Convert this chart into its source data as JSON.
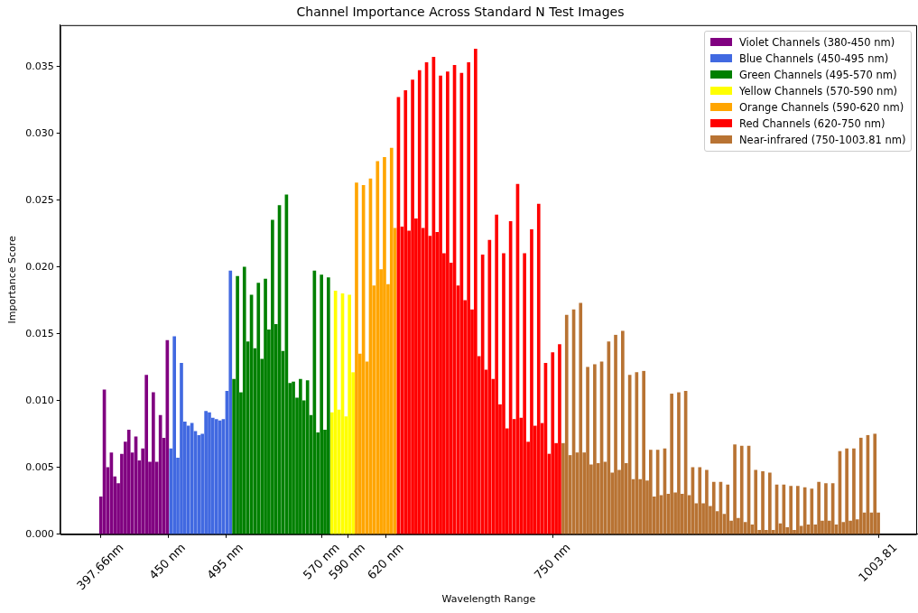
{
  "chart_data": {
    "type": "bar",
    "title": "Channel Importance Across Standard N Test Images",
    "xlabel": "Wavelength Range",
    "ylabel": "Importance Score",
    "xlim": [
      366,
      1034
    ],
    "xticks": [
      {
        "value": 397.66,
        "label": "397.66nm"
      },
      {
        "value": 450,
        "label": "450 nm"
      },
      {
        "value": 495,
        "label": "495 nm"
      },
      {
        "value": 570,
        "label": "570 nm"
      },
      {
        "value": 590,
        "label": "590 nm"
      },
      {
        "value": 620,
        "label": "620 nm"
      },
      {
        "value": 750,
        "label": "750 nm"
      },
      {
        "value": 1003.81,
        "label": "1003.81"
      }
    ],
    "ylim": [
      0,
      0.0381
    ],
    "yticks": [
      {
        "value": 0,
        "label": "0.000"
      },
      {
        "value": 0.005,
        "label": "0.005"
      },
      {
        "value": 0.01,
        "label": "0.010"
      },
      {
        "value": 0.015,
        "label": "0.015"
      },
      {
        "value": 0.02,
        "label": "0.020"
      },
      {
        "value": 0.025,
        "label": "0.025"
      },
      {
        "value": 0.03,
        "label": "0.030"
      },
      {
        "value": 0.035,
        "label": "0.035"
      }
    ],
    "grid": false,
    "legend": "top right",
    "series": [
      {
        "name": "Violet Channels (380-450 nm)",
        "color": "#800080",
        "x": [
          397.7,
          400.4,
          403.1,
          405.9,
          408.6,
          411.3,
          414.0,
          416.8,
          419.5,
          422.2,
          425.0,
          427.7,
          430.4,
          433.2,
          435.9,
          438.6,
          441.3,
          444.1,
          446.8,
          449.5
        ],
        "values": [
          0.0028,
          0.0108,
          0.005,
          0.0061,
          0.0043,
          0.0038,
          0.006,
          0.0069,
          0.0078,
          0.0061,
          0.0073,
          0.0055,
          0.0064,
          0.0119,
          0.0054,
          0.0106,
          0.0054,
          0.0089,
          0.0072,
          0.0145
        ]
      },
      {
        "name": "Blue Channels (450-495 nm)",
        "color": "#4169e1",
        "x": [
          452.3,
          455.0,
          457.7,
          460.5,
          463.2,
          465.9,
          468.7,
          471.4,
          474.1,
          476.8,
          479.6,
          482.3,
          485.0,
          487.8,
          490.5,
          493.2,
          496.0,
          498.7
        ],
        "values": [
          0.0064,
          0.0148,
          0.0057,
          0.0128,
          0.0084,
          0.0081,
          0.0083,
          0.0077,
          0.0074,
          0.0075,
          0.0092,
          0.0091,
          0.0087,
          0.0086,
          0.0085,
          0.0086,
          0.0107,
          0.0197
        ]
      },
      {
        "name": "Green Channels (495-570 nm)",
        "color": "#008000",
        "x": [
          501.4,
          504.2,
          506.9,
          509.6,
          512.3,
          515.1,
          517.8,
          520.5,
          523.3,
          526.0,
          528.7,
          531.5,
          534.2,
          536.9,
          539.6,
          542.4,
          545.1,
          547.8,
          550.6,
          553.3,
          556.0,
          558.8,
          561.5,
          564.2,
          566.9,
          569.7,
          572.4,
          575.1
        ],
        "values": [
          0.0116,
          0.0193,
          0.0106,
          0.02,
          0.0144,
          0.0179,
          0.0139,
          0.0188,
          0.0131,
          0.0191,
          0.0153,
          0.0235,
          0.0157,
          0.0246,
          0.0137,
          0.0254,
          0.0113,
          0.0114,
          0.0102,
          0.0116,
          0.01,
          0.0115,
          0.0089,
          0.0197,
          0.0076,
          0.0194,
          0.0078,
          0.0192
        ]
      },
      {
        "name": "Yellow Channels (570-590 nm)",
        "color": "#ffff00",
        "x": [
          577.9,
          580.6,
          583.3,
          586.1,
          588.8,
          591.5,
          594.3
        ],
        "values": [
          0.0091,
          0.0182,
          0.0093,
          0.018,
          0.0088,
          0.0179,
          0.0121
        ]
      },
      {
        "name": "Orange Channels (590-620 nm)",
        "color": "#ffa500",
        "x": [
          597.0,
          599.7,
          602.4,
          605.2,
          607.9,
          610.6,
          613.4,
          616.1,
          618.8,
          621.6,
          624.3,
          627.0
        ],
        "values": [
          0.0263,
          0.0135,
          0.0261,
          0.0129,
          0.0266,
          0.0186,
          0.0279,
          0.0198,
          0.0282,
          0.0187,
          0.0289,
          0.0229
        ]
      },
      {
        "name": "Red Channels (620-750 nm)",
        "color": "#ff0000",
        "x": [
          629.7,
          632.5,
          635.2,
          637.9,
          640.7,
          643.4,
          646.1,
          648.9,
          651.6,
          654.3,
          657.1,
          659.8,
          662.5,
          665.2,
          668.0,
          670.7,
          673.4,
          676.2,
          678.9,
          681.6,
          684.4,
          687.1,
          689.8,
          692.5,
          695.3,
          698.0,
          700.7,
          703.5,
          706.2,
          708.9,
          711.7,
          714.4,
          717.1,
          719.9,
          722.6,
          725.3,
          728.0,
          730.8,
          733.5,
          736.2,
          739.0,
          741.7,
          744.4,
          747.2,
          749.9,
          752.6,
          755.3
        ],
        "values": [
          0.0327,
          0.023,
          0.0332,
          0.0227,
          0.034,
          0.0236,
          0.0347,
          0.0229,
          0.0353,
          0.0223,
          0.0357,
          0.0226,
          0.0343,
          0.021,
          0.0346,
          0.0203,
          0.0351,
          0.0186,
          0.0345,
          0.0175,
          0.0353,
          0.0168,
          0.0363,
          0.0133,
          0.0209,
          0.0123,
          0.022,
          0.0116,
          0.0239,
          0.0097,
          0.021,
          0.0079,
          0.0234,
          0.0086,
          0.0262,
          0.0087,
          0.021,
          0.0069,
          0.0228,
          0.0081,
          0.0247,
          0.0083,
          0.0128,
          0.006,
          0.0136,
          0.0068,
          0.0142
        ]
      },
      {
        "name": "Near-infrared (750-1003.81 nm)",
        "color": "#b87333",
        "x": [
          758.1,
          760.8,
          763.5,
          766.3,
          769.0,
          771.7,
          774.5,
          777.2,
          779.9,
          782.7,
          785.4,
          788.1,
          790.8,
          793.6,
          796.3,
          799.0,
          801.8,
          804.5,
          807.2,
          810.0,
          812.7,
          815.4,
          818.1,
          820.9,
          823.6,
          826.3,
          829.1,
          831.8,
          834.5,
          837.3,
          840.0,
          842.7,
          845.5,
          848.2,
          850.9,
          853.6,
          856.4,
          859.1,
          861.8,
          864.6,
          867.3,
          870.0,
          872.8,
          875.5,
          878.2,
          880.9,
          883.7,
          886.4,
          889.1,
          891.9,
          894.6,
          897.3,
          900.1,
          902.8,
          905.5,
          908.2,
          911.0,
          913.7,
          916.4,
          919.2,
          921.9,
          924.6,
          927.4,
          930.1,
          932.8,
          935.6,
          938.3,
          941.0,
          943.7,
          946.5,
          949.2,
          951.9,
          954.7,
          957.4,
          960.1,
          962.9,
          965.6,
          968.3,
          971.0,
          973.8,
          976.5,
          979.2,
          982.0,
          984.7,
          987.4,
          990.2,
          992.9,
          995.6,
          998.4,
          1001.1,
          1003.8
        ],
        "values": [
          0.0068,
          0.0164,
          0.0059,
          0.0168,
          0.0061,
          0.0173,
          0.0061,
          0.0125,
          0.0052,
          0.0127,
          0.0053,
          0.0129,
          0.0054,
          0.0144,
          0.0046,
          0.0149,
          0.0048,
          0.0152,
          0.0053,
          0.0119,
          0.0041,
          0.0121,
          0.0041,
          0.0122,
          0.004,
          0.0063,
          0.0028,
          0.0063,
          0.0029,
          0.0064,
          0.003,
          0.0105,
          0.0031,
          0.0106,
          0.003,
          0.0107,
          0.0029,
          0.005,
          0.0023,
          0.005,
          0.0023,
          0.0048,
          0.0021,
          0.0039,
          0.0017,
          0.0039,
          0.0015,
          0.0037,
          0.001,
          0.0067,
          0.0012,
          0.0066,
          0.0009,
          0.0066,
          0.0007,
          0.0048,
          0.0003,
          0.0047,
          0.0003,
          0.0046,
          0.0003,
          0.0037,
          0.0008,
          0.0037,
          0.0005,
          0.0036,
          0.0003,
          0.0036,
          0.0006,
          0.0035,
          0.0007,
          0.0034,
          0.0007,
          0.0039,
          0.001,
          0.0038,
          0.001,
          0.0038,
          0.0007,
          0.0062,
          0.0009,
          0.0064,
          0.001,
          0.0064,
          0.0011,
          0.0072,
          0.0016,
          0.0074,
          0.0016,
          0.0075,
          0.0016
        ]
      }
    ]
  }
}
